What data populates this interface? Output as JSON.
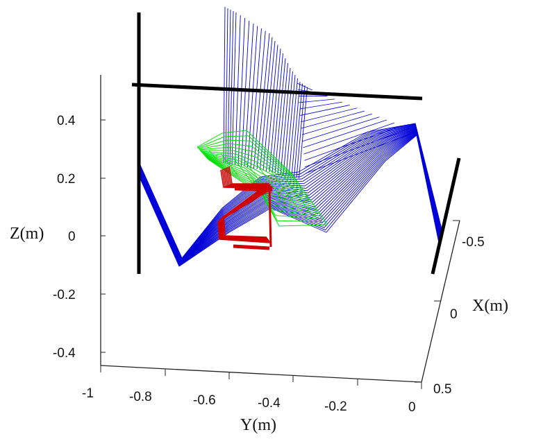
{
  "chart_data": {
    "type": "3d-line",
    "xlabel": "X(m)",
    "ylabel": "Y(m)",
    "zlabel": "Z(m)",
    "x_ticks": [
      "-0.5",
      "0",
      "0.5"
    ],
    "y_ticks": [
      "-1",
      "-0.8",
      "-0.6",
      "-0.4",
      "-0.2",
      "0"
    ],
    "z_ticks": [
      "0.4",
      "0.2",
      "0",
      "-0.2",
      "-0.4"
    ],
    "xlim": [
      -0.5,
      0.5
    ],
    "ylim": [
      -1,
      0
    ],
    "zlim": [
      -0.45,
      0.5
    ],
    "grid": false,
    "series": [
      {
        "color": "#0000d8"
      },
      {
        "color": "#00e000"
      },
      {
        "color": "#d00000"
      },
      {
        "color": "#000000"
      }
    ]
  }
}
